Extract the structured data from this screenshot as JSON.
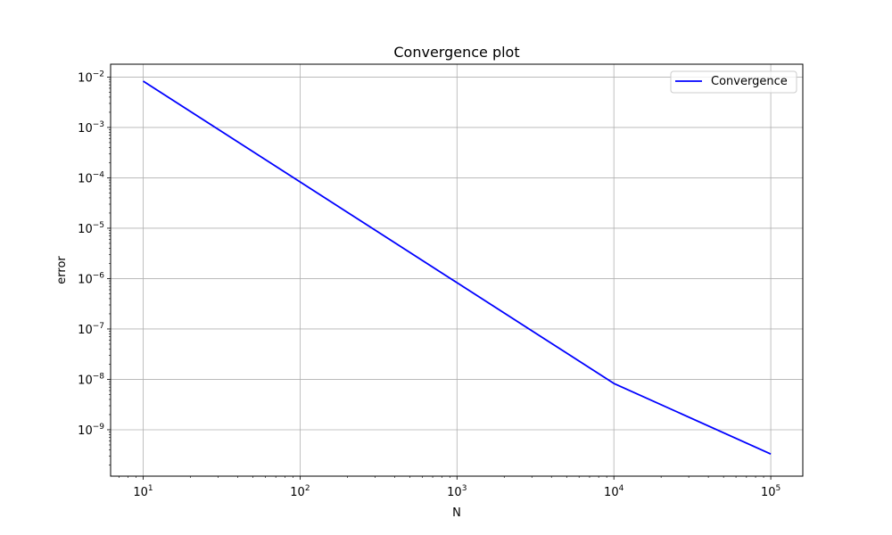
{
  "chart_data": {
    "type": "line",
    "title": "Convergence plot",
    "xlabel": "N",
    "ylabel": "error",
    "xscale": "log",
    "yscale": "log",
    "xlim": [
      6.2,
      160000
    ],
    "ylim": [
      1.2e-10,
      0.018
    ],
    "grid": true,
    "legend_position": "top-right",
    "xticks": [
      {
        "base": "10",
        "exp": "1",
        "value": 10
      },
      {
        "base": "10",
        "exp": "2",
        "value": 100
      },
      {
        "base": "10",
        "exp": "3",
        "value": 1000
      },
      {
        "base": "10",
        "exp": "4",
        "value": 10000
      },
      {
        "base": "10",
        "exp": "5",
        "value": 100000
      }
    ],
    "yticks": [
      {
        "base": "10",
        "exp": "−2",
        "value": 0.01
      },
      {
        "base": "10",
        "exp": "−3",
        "value": 0.001
      },
      {
        "base": "10",
        "exp": "−4",
        "value": 0.0001
      },
      {
        "base": "10",
        "exp": "−5",
        "value": 1e-05
      },
      {
        "base": "10",
        "exp": "−6",
        "value": 1e-06
      },
      {
        "base": "10",
        "exp": "−7",
        "value": 1e-07
      },
      {
        "base": "10",
        "exp": "−8",
        "value": 1e-08
      },
      {
        "base": "10",
        "exp": "−9",
        "value": 1e-09
      }
    ],
    "series": [
      {
        "name": "Convergence",
        "color": "#0000ff",
        "x": [
          10,
          100,
          1000,
          10000,
          100000
        ],
        "y": [
          0.0083,
          8.3e-05,
          8.3e-07,
          8.3e-09,
          3.3e-10
        ]
      }
    ]
  }
}
